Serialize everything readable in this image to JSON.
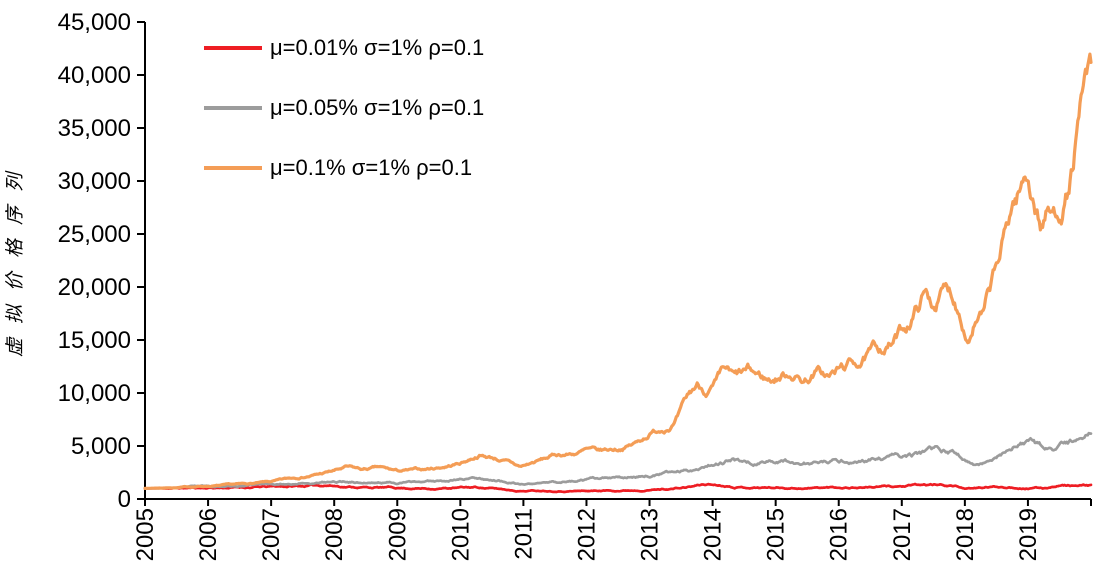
{
  "chart_data": {
    "type": "line",
    "title": "",
    "xlabel": "",
    "ylabel": "虚拟价格序列",
    "xlim": [
      2005,
      2020
    ],
    "ylim": [
      0,
      45000
    ],
    "y_tick_step": 5000,
    "y_tick_labels": [
      "0",
      "5,000",
      "10,000",
      "15,000",
      "20,000",
      "25,000",
      "30,000",
      "35,000",
      "40,000",
      "45,000"
    ],
    "x_ticks": [
      2005,
      2006,
      2007,
      2008,
      2009,
      2010,
      2011,
      2012,
      2013,
      2014,
      2015,
      2016,
      2017,
      2018,
      2019
    ],
    "x_tick_labels": [
      "2005",
      "2006",
      "2007",
      "2008",
      "2009",
      "2010",
      "2011",
      "2012",
      "2013",
      "2014",
      "2015",
      "2016",
      "2017",
      "2018",
      "2019"
    ],
    "grid": false,
    "legend_position": "top-left-inside",
    "series": [
      {
        "name": "μ=0.01% σ=1% ρ=0.1",
        "color": "#ee1d23",
        "anchors": [
          [
            2005,
            1000
          ],
          [
            2005.5,
            1020
          ],
          [
            2006,
            1060
          ],
          [
            2006.5,
            1100
          ],
          [
            2007,
            1140
          ],
          [
            2007.5,
            1220
          ],
          [
            2007.9,
            1320
          ],
          [
            2008.2,
            1180
          ],
          [
            2008.6,
            1100
          ],
          [
            2009,
            1050
          ],
          [
            2009.5,
            1000
          ],
          [
            2010,
            1060
          ],
          [
            2010.3,
            1100
          ],
          [
            2010.6,
            950
          ],
          [
            2010.95,
            780
          ],
          [
            2011.3,
            820
          ],
          [
            2011.7,
            800
          ],
          [
            2012,
            780
          ],
          [
            2012.5,
            820
          ],
          [
            2013,
            900
          ],
          [
            2013.5,
            1050
          ],
          [
            2013.9,
            1400
          ],
          [
            2014.2,
            1300
          ],
          [
            2014.5,
            1150
          ],
          [
            2015,
            1100
          ],
          [
            2015.5,
            1050
          ],
          [
            2016,
            1100
          ],
          [
            2016.5,
            1150
          ],
          [
            2017,
            1200
          ],
          [
            2017.5,
            1300
          ],
          [
            2017.8,
            1250
          ],
          [
            2018.1,
            950
          ],
          [
            2018.4,
            1100
          ],
          [
            2018.7,
            1150
          ],
          [
            2019,
            1080
          ],
          [
            2019.25,
            1020
          ],
          [
            2019.5,
            1350
          ],
          [
            2019.7,
            1300
          ],
          [
            2019.85,
            1220
          ],
          [
            2020,
            1260
          ]
        ]
      },
      {
        "name": "μ=0.05% σ=1% ρ=0.1",
        "color": "#9c9c9c",
        "anchors": [
          [
            2005,
            1000
          ],
          [
            2005.5,
            1050
          ],
          [
            2006,
            1170
          ],
          [
            2006.5,
            1240
          ],
          [
            2007,
            1400
          ],
          [
            2007.5,
            1530
          ],
          [
            2008,
            1560
          ],
          [
            2008.2,
            1650
          ],
          [
            2008.5,
            1550
          ],
          [
            2009,
            1560
          ],
          [
            2009.5,
            1650
          ],
          [
            2010,
            1950
          ],
          [
            2010.3,
            2050
          ],
          [
            2010.6,
            1800
          ],
          [
            2010.95,
            1350
          ],
          [
            2011.3,
            1500
          ],
          [
            2011.7,
            1650
          ],
          [
            2012,
            1800
          ],
          [
            2012.5,
            1900
          ],
          [
            2013,
            2260
          ],
          [
            2013.4,
            2500
          ],
          [
            2013.7,
            2800
          ],
          [
            2013.85,
            3150
          ],
          [
            2014,
            3450
          ],
          [
            2014.3,
            3700
          ],
          [
            2014.6,
            3420
          ],
          [
            2014.85,
            3550
          ],
          [
            2015.1,
            3650
          ],
          [
            2015.4,
            3500
          ],
          [
            2015.7,
            3400
          ],
          [
            2016,
            3500
          ],
          [
            2016.4,
            3650
          ],
          [
            2016.8,
            3800
          ],
          [
            2017,
            3950
          ],
          [
            2017.3,
            4150
          ],
          [
            2017.6,
            4350
          ],
          [
            2017.85,
            4200
          ],
          [
            2018,
            3800
          ],
          [
            2018.15,
            3100
          ],
          [
            2018.35,
            3600
          ],
          [
            2018.55,
            4300
          ],
          [
            2018.75,
            4900
          ],
          [
            2018.9,
            5300
          ],
          [
            2019.05,
            5100
          ],
          [
            2019.2,
            4750
          ],
          [
            2019.4,
            4450
          ],
          [
            2019.6,
            4900
          ],
          [
            2019.8,
            5400
          ],
          [
            2019.9,
            5800
          ],
          [
            2020,
            6200
          ]
        ]
      },
      {
        "name": "μ=0.1% σ=1% ρ=0.1",
        "color": "#f49d56",
        "anchors": [
          [
            2005,
            1000
          ],
          [
            2005.5,
            1090
          ],
          [
            2006,
            1230
          ],
          [
            2006.5,
            1340
          ],
          [
            2007,
            1580
          ],
          [
            2007.5,
            2100
          ],
          [
            2007.8,
            2400
          ],
          [
            2008,
            2650
          ],
          [
            2008.2,
            2950
          ],
          [
            2008.45,
            2700
          ],
          [
            2008.7,
            2900
          ],
          [
            2009,
            2570
          ],
          [
            2009.4,
            2700
          ],
          [
            2009.7,
            3000
          ],
          [
            2010,
            3400
          ],
          [
            2010.3,
            4200
          ],
          [
            2010.55,
            3900
          ],
          [
            2010.75,
            3500
          ],
          [
            2010.95,
            3000
          ],
          [
            2011.2,
            3500
          ],
          [
            2011.5,
            4100
          ],
          [
            2011.8,
            4300
          ],
          [
            2012,
            4600
          ],
          [
            2012.2,
            4350
          ],
          [
            2012.5,
            4700
          ],
          [
            2012.8,
            5300
          ],
          [
            2013,
            6200
          ],
          [
            2013.2,
            6700
          ],
          [
            2013.4,
            7400
          ],
          [
            2013.6,
            9300
          ],
          [
            2013.75,
            10500
          ],
          [
            2013.9,
            10200
          ],
          [
            2014.05,
            10700
          ],
          [
            2014.2,
            11700
          ],
          [
            2014.35,
            10900
          ],
          [
            2014.55,
            11500
          ],
          [
            2014.75,
            11200
          ],
          [
            2014.9,
            11000
          ],
          [
            2015.1,
            11600
          ],
          [
            2015.25,
            12000
          ],
          [
            2015.45,
            11300
          ],
          [
            2015.65,
            12100
          ],
          [
            2015.85,
            11500
          ],
          [
            2016.05,
            12200
          ],
          [
            2016.35,
            13000
          ],
          [
            2016.65,
            14000
          ],
          [
            2016.85,
            14700
          ],
          [
            2017.05,
            16000
          ],
          [
            2017.2,
            17600
          ],
          [
            2017.35,
            19400
          ],
          [
            2017.5,
            18400
          ],
          [
            2017.65,
            19600
          ],
          [
            2017.8,
            19300
          ],
          [
            2017.95,
            17600
          ],
          [
            2018.05,
            15600
          ],
          [
            2018.15,
            17300
          ],
          [
            2018.3,
            17500
          ],
          [
            2018.45,
            20300
          ],
          [
            2018.6,
            23300
          ],
          [
            2018.75,
            27300
          ],
          [
            2018.9,
            29200
          ],
          [
            2019,
            30300
          ],
          [
            2019.1,
            28400
          ],
          [
            2019.2,
            26200
          ],
          [
            2019.32,
            27300
          ],
          [
            2019.42,
            26700
          ],
          [
            2019.55,
            28300
          ],
          [
            2019.65,
            29600
          ],
          [
            2019.75,
            33300
          ],
          [
            2019.85,
            36500
          ],
          [
            2019.93,
            38800
          ],
          [
            2020,
            38500
          ]
        ]
      }
    ]
  }
}
